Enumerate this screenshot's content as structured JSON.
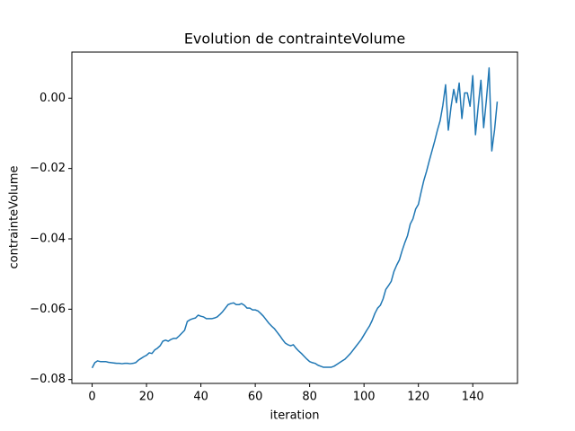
{
  "chart_data": {
    "type": "line",
    "title": "Evolution de contrainteVolume",
    "xlabel": "iteration",
    "ylabel": "contrainteVolume",
    "x": [
      0,
      1,
      2,
      3,
      4,
      5,
      6,
      7,
      8,
      9,
      10,
      11,
      12,
      13,
      14,
      15,
      16,
      17,
      18,
      19,
      20,
      21,
      22,
      23,
      24,
      25,
      26,
      27,
      28,
      29,
      30,
      31,
      32,
      33,
      34,
      35,
      36,
      37,
      38,
      39,
      40,
      41,
      42,
      43,
      44,
      45,
      46,
      47,
      48,
      49,
      50,
      51,
      52,
      53,
      54,
      55,
      56,
      57,
      58,
      59,
      60,
      61,
      62,
      63,
      64,
      65,
      66,
      67,
      68,
      69,
      70,
      71,
      72,
      73,
      74,
      75,
      76,
      77,
      78,
      79,
      80,
      81,
      82,
      83,
      84,
      85,
      86,
      87,
      88,
      89,
      90,
      91,
      92,
      93,
      94,
      95,
      96,
      97,
      98,
      99,
      100,
      101,
      102,
      103,
      104,
      105,
      106,
      107,
      108,
      109,
      110,
      111,
      112,
      113,
      114,
      115,
      116,
      117,
      118,
      119,
      120,
      121,
      122,
      123,
      124,
      125,
      126,
      127,
      128,
      129,
      130,
      131,
      132,
      133,
      134,
      135,
      136,
      137,
      138,
      139,
      140,
      141,
      142,
      143,
      144,
      145,
      146,
      147,
      148,
      149
    ],
    "values": [
      -0.0767,
      -0.0752,
      -0.0747,
      -0.0749,
      -0.0749,
      -0.0749,
      -0.0751,
      -0.0752,
      -0.0753,
      -0.0754,
      -0.0754,
      -0.0755,
      -0.0754,
      -0.0754,
      -0.0755,
      -0.0754,
      -0.0752,
      -0.0745,
      -0.074,
      -0.0735,
      -0.0731,
      -0.0724,
      -0.0726,
      -0.0716,
      -0.0711,
      -0.0704,
      -0.0691,
      -0.0688,
      -0.0691,
      -0.0686,
      -0.0683,
      -0.0683,
      -0.0676,
      -0.0668,
      -0.066,
      -0.0635,
      -0.063,
      -0.0627,
      -0.0625,
      -0.0617,
      -0.062,
      -0.0622,
      -0.0627,
      -0.0627,
      -0.0627,
      -0.0625,
      -0.0622,
      -0.0615,
      -0.0607,
      -0.0597,
      -0.0587,
      -0.0584,
      -0.0582,
      -0.0587,
      -0.0587,
      -0.0584,
      -0.0589,
      -0.0597,
      -0.0597,
      -0.0602,
      -0.0602,
      -0.0605,
      -0.0612,
      -0.062,
      -0.063,
      -0.064,
      -0.0648,
      -0.0655,
      -0.0665,
      -0.0675,
      -0.0686,
      -0.0696,
      -0.0701,
      -0.0704,
      -0.0701,
      -0.0711,
      -0.0719,
      -0.0726,
      -0.0734,
      -0.0742,
      -0.0749,
      -0.0752,
      -0.0754,
      -0.0759,
      -0.0762,
      -0.0765,
      -0.0765,
      -0.0765,
      -0.0765,
      -0.0762,
      -0.0757,
      -0.0752,
      -0.0747,
      -0.0742,
      -0.0734,
      -0.0726,
      -0.0716,
      -0.0706,
      -0.0696,
      -0.0686,
      -0.0673,
      -0.066,
      -0.0648,
      -0.0632,
      -0.0612,
      -0.0597,
      -0.0589,
      -0.0571,
      -0.0544,
      -0.0533,
      -0.0521,
      -0.0493,
      -0.0475,
      -0.046,
      -0.0434,
      -0.0411,
      -0.0391,
      -0.0358,
      -0.0343,
      -0.0315,
      -0.0302,
      -0.0267,
      -0.0234,
      -0.0208,
      -0.0178,
      -0.015,
      -0.0122,
      -0.0091,
      -0.0064,
      -0.002,
      0.0038,
      -0.0091,
      -0.0025,
      0.0025,
      -0.0013,
      0.0043,
      -0.0058,
      0.0015,
      0.0015,
      -0.0023,
      0.0064,
      -0.0104,
      -0.0023,
      0.0051,
      -0.0084,
      -0.0005,
      0.0086,
      -0.015,
      -0.0091,
      -0.001
    ],
    "color": "#1f77b4",
    "xlim": [
      -7.45,
      156.45
    ],
    "xticks": [
      0,
      20,
      40,
      60,
      80,
      100,
      120,
      140
    ],
    "ylim": [
      -0.0811,
      0.0131
    ],
    "yticks": [
      {
        "value": -0.08,
        "label": "−0.08"
      },
      {
        "value": -0.06,
        "label": "−0.06"
      },
      {
        "value": -0.04,
        "label": "−0.04"
      },
      {
        "value": -0.02,
        "label": "−0.02"
      },
      {
        "value": 0,
        "label": "0.00"
      }
    ],
    "grid": false
  }
}
